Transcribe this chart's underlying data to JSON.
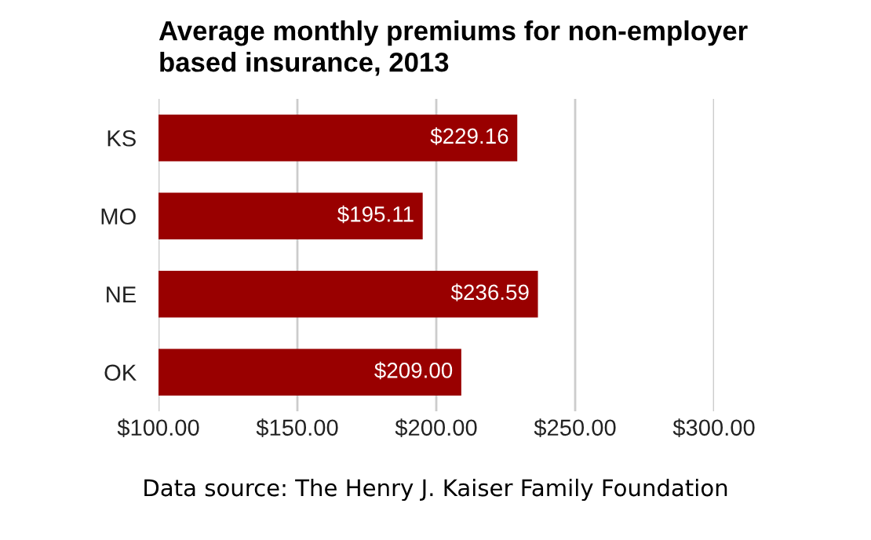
{
  "chart_data": {
    "type": "bar",
    "orientation": "horizontal",
    "title": "Average monthly premiums for non-employer\nbased insurance, 2013",
    "categories": [
      "KS",
      "MO",
      "NE",
      "OK"
    ],
    "values": [
      229.16,
      195.11,
      236.59,
      209.0
    ],
    "value_labels": [
      "$229.16",
      "$195.11",
      "$236.59",
      "$209.00"
    ],
    "color": "#990000",
    "xlim": [
      100,
      300
    ],
    "xticks": [
      {
        "value": 100,
        "label": "$100.00"
      },
      {
        "value": 150,
        "label": "$150.00"
      },
      {
        "value": 200,
        "label": "$200.00"
      },
      {
        "value": 250,
        "label": "$250.00"
      },
      {
        "value": 300,
        "label": "$300.00"
      }
    ],
    "grid": "x",
    "annotations": [
      "Data source: The Henry J. Kaiser Family Foundation"
    ]
  }
}
